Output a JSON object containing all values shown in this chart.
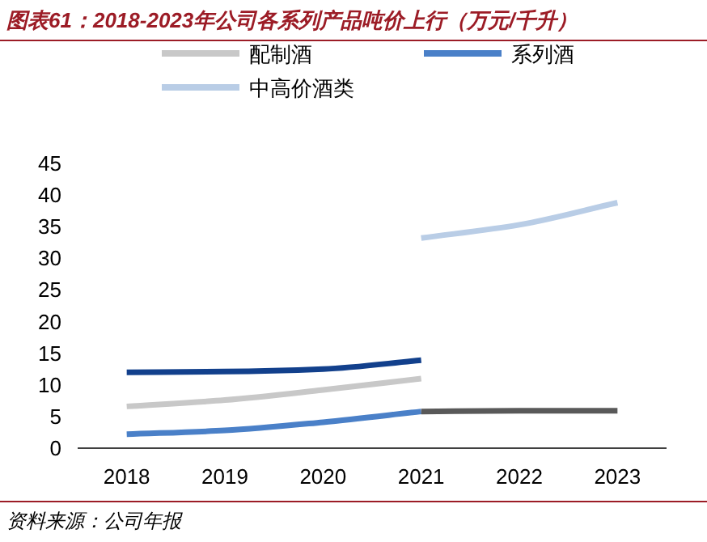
{
  "chart_data": {
    "type": "line",
    "title": "图表61：2018-2023年公司各系列产品吨价上行（万元/千升）",
    "categories": [
      "2018",
      "2019",
      "2020",
      "2021",
      "2022",
      "2023"
    ],
    "ylim": [
      0,
      45
    ],
    "yticks": [
      0,
      5,
      10,
      15,
      20,
      25,
      30,
      35,
      40,
      45
    ],
    "legend": "top",
    "line_style": "solid",
    "series": [
      {
        "color": "#12408c",
        "values": [
          12.0,
          12.1,
          12.5,
          13.9,
          null,
          null
        ]
      },
      {
        "name": "配制酒",
        "color": "#c8c8c8",
        "values": [
          6.6,
          7.6,
          9.2,
          11.0,
          null,
          null
        ]
      },
      {
        "name": "系列酒",
        "color": "#4a80c8",
        "values": [
          2.2,
          2.8,
          4.1,
          5.8,
          null,
          null
        ]
      },
      {
        "name": "中高价酒类",
        "color": "#b9cde6",
        "values": [
          null,
          null,
          null,
          33.2,
          35.3,
          38.8
        ]
      },
      {
        "color": "#595959",
        "values": [
          null,
          null,
          null,
          5.8,
          5.9,
          5.9
        ]
      }
    ],
    "annotations": [
      "资料来源：公司年报"
    ]
  }
}
